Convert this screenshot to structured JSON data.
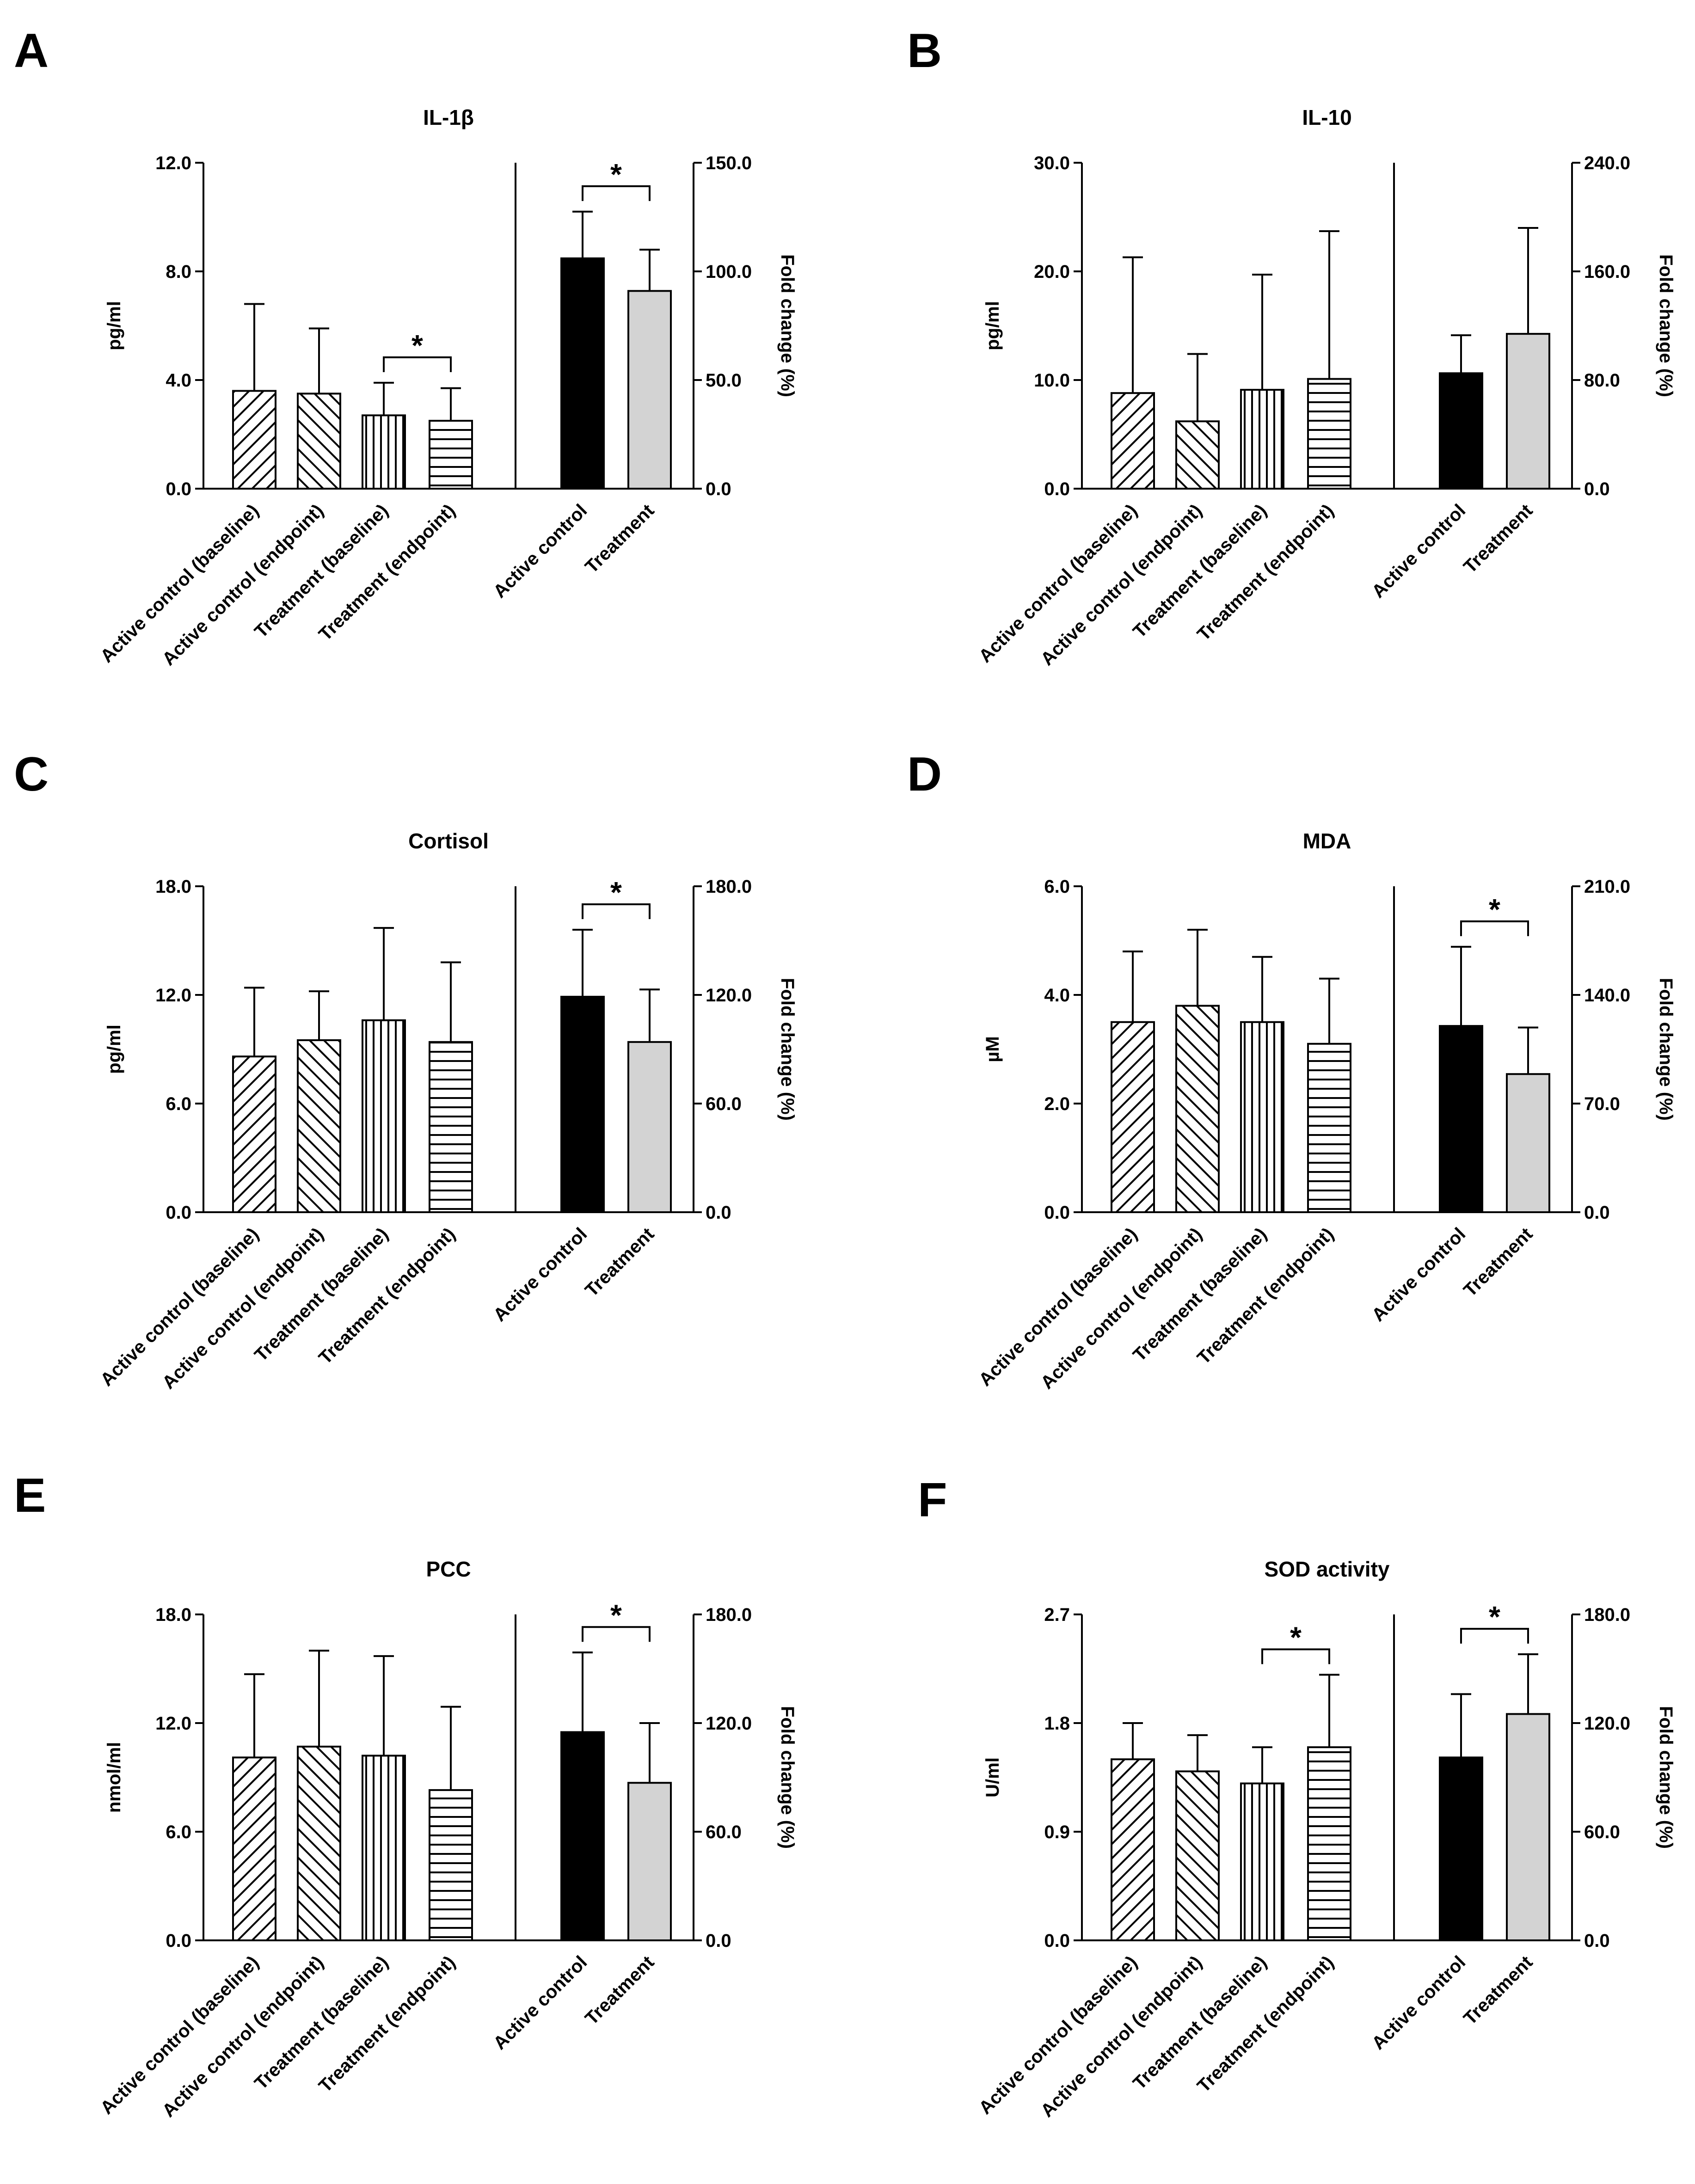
{
  "figure": {
    "panel_letters": [
      "A",
      "B",
      "C",
      "D",
      "E",
      "F"
    ]
  },
  "chart_data": [
    {
      "panel": "A",
      "type": "bar",
      "title": "IL-1β",
      "ylabel_left": "pg/ml",
      "ylabel_right": "Fold change (%)",
      "left_axis": {
        "ylim": [
          0,
          12
        ],
        "ticks": [
          "0.0",
          "4.0",
          "8.0",
          "12.0"
        ]
      },
      "right_axis": {
        "ylim": [
          0,
          150
        ],
        "ticks": [
          "0.0",
          "50.0",
          "100.0",
          "150.0"
        ]
      },
      "left_group": {
        "categories": [
          "Active control (baseline)",
          "Active control (endpoint)",
          "Treatment (baseline)",
          "Treatment (endpoint)"
        ],
        "values": [
          3.6,
          3.5,
          2.7,
          2.5
        ],
        "errors": [
          3.2,
          2.4,
          1.2,
          1.2
        ],
        "patterns": [
          "diag-back",
          "diag-fwd",
          "vertical",
          "horizontal"
        ],
        "significance": [
          {
            "from": 2,
            "to": 3,
            "label": "*"
          }
        ]
      },
      "right_group": {
        "categories": [
          "Active control",
          "Treatment"
        ],
        "values": [
          106,
          91
        ],
        "errors": [
          21.5,
          19
        ],
        "fills": [
          "#000000",
          "#d3d3d3"
        ],
        "significance": [
          {
            "from": 0,
            "to": 1,
            "label": "*"
          }
        ]
      }
    },
    {
      "panel": "B",
      "type": "bar",
      "title": "IL-10",
      "ylabel_left": "pg/ml",
      "ylabel_right": "Fold change (%)",
      "left_axis": {
        "ylim": [
          0,
          30
        ],
        "ticks": [
          "0.0",
          "10.0",
          "20.0",
          "30.0"
        ]
      },
      "right_axis": {
        "ylim": [
          0,
          240
        ],
        "ticks": [
          "0.0",
          "80.0",
          "160.0",
          "240.0"
        ]
      },
      "left_group": {
        "categories": [
          "Active control (baseline)",
          "Active control (endpoint)",
          "Treatment (baseline)",
          "Treatment (endpoint)"
        ],
        "values": [
          8.8,
          6.2,
          9.1,
          10.1
        ],
        "errors": [
          12.5,
          6.2,
          10.6,
          13.6
        ],
        "patterns": [
          "diag-back",
          "diag-fwd",
          "vertical",
          "horizontal"
        ],
        "significance": []
      },
      "right_group": {
        "categories": [
          "Active control",
          "Treatment"
        ],
        "values": [
          85,
          114
        ],
        "errors": [
          28,
          78
        ],
        "fills": [
          "#000000",
          "#d3d3d3"
        ],
        "significance": []
      }
    },
    {
      "panel": "C",
      "type": "bar",
      "title": "Cortisol",
      "ylabel_left": "pg/ml",
      "ylabel_right": "Fold change (%)",
      "left_axis": {
        "ylim": [
          0,
          18
        ],
        "ticks": [
          "0.0",
          "6.0",
          "12.0",
          "18.0"
        ]
      },
      "right_axis": {
        "ylim": [
          0,
          180
        ],
        "ticks": [
          "0.0",
          "60.0",
          "120.0",
          "180.0"
        ]
      },
      "left_group": {
        "categories": [
          "Active control (baseline)",
          "Active control (endpoint)",
          "Treatment (baseline)",
          "Treatment (endpoint)"
        ],
        "values": [
          8.6,
          9.5,
          10.6,
          9.4
        ],
        "errors": [
          3.8,
          2.7,
          5.1,
          4.4
        ],
        "patterns": [
          "diag-back",
          "diag-fwd",
          "vertical",
          "horizontal"
        ],
        "significance": []
      },
      "right_group": {
        "categories": [
          "Active control",
          "Treatment"
        ],
        "values": [
          119,
          94
        ],
        "errors": [
          37,
          29
        ],
        "fills": [
          "#000000",
          "#d3d3d3"
        ],
        "significance": [
          {
            "from": 0,
            "to": 1,
            "label": "*"
          }
        ]
      }
    },
    {
      "panel": "D",
      "type": "bar",
      "title": "MDA",
      "ylabel_left": "µM",
      "ylabel_right": "Fold change (%)",
      "left_axis": {
        "ylim": [
          0,
          6
        ],
        "ticks": [
          "0.0",
          "2.0",
          "4.0",
          "6.0"
        ]
      },
      "right_axis": {
        "ylim": [
          0,
          210
        ],
        "ticks": [
          "0.0",
          "70.0",
          "140.0",
          "210.0"
        ]
      },
      "left_group": {
        "categories": [
          "Active control (baseline)",
          "Active control (endpoint)",
          "Treatment (baseline)",
          "Treatment (endpoint)"
        ],
        "values": [
          3.5,
          3.8,
          3.5,
          3.1
        ],
        "errors": [
          1.3,
          1.4,
          1.2,
          1.2
        ],
        "patterns": [
          "diag-back",
          "diag-fwd",
          "vertical",
          "horizontal"
        ],
        "significance": []
      },
      "right_group": {
        "categories": [
          "Active control",
          "Treatment"
        ],
        "values": [
          120,
          89
        ],
        "errors": [
          51,
          30
        ],
        "fills": [
          "#000000",
          "#d3d3d3"
        ],
        "significance": [
          {
            "from": 0,
            "to": 1,
            "label": "*"
          }
        ]
      }
    },
    {
      "panel": "E",
      "type": "bar",
      "title": "PCC",
      "ylabel_left": "nmol/ml",
      "ylabel_right": "Fold change (%)",
      "left_axis": {
        "ylim": [
          0,
          18
        ],
        "ticks": [
          "0.0",
          "6.0",
          "12.0",
          "18.0"
        ]
      },
      "right_axis": {
        "ylim": [
          0,
          180
        ],
        "ticks": [
          "0.0",
          "60.0",
          "120.0",
          "180.0"
        ]
      },
      "left_group": {
        "categories": [
          "Active control (baseline)",
          "Active control (endpoint)",
          "Treatment (baseline)",
          "Treatment (endpoint)"
        ],
        "values": [
          10.1,
          10.7,
          10.2,
          8.3
        ],
        "errors": [
          4.6,
          5.3,
          5.5,
          4.6
        ],
        "patterns": [
          "diag-back",
          "diag-fwd",
          "vertical",
          "horizontal"
        ],
        "significance": []
      },
      "right_group": {
        "categories": [
          "Active control",
          "Treatment"
        ],
        "values": [
          115,
          87
        ],
        "errors": [
          44,
          33
        ],
        "fills": [
          "#000000",
          "#d3d3d3"
        ],
        "significance": [
          {
            "from": 0,
            "to": 1,
            "label": "*"
          }
        ]
      }
    },
    {
      "panel": "F",
      "type": "bar",
      "title": "SOD activity",
      "ylabel_left": "U/ml",
      "ylabel_right": "Fold change (%)",
      "left_axis": {
        "ylim": [
          0,
          2.7
        ],
        "ticks": [
          "0.0",
          "0.9",
          "1.8",
          "2.7"
        ]
      },
      "right_axis": {
        "ylim": [
          0,
          180
        ],
        "ticks": [
          "0.0",
          "60.0",
          "120.0",
          "180.0"
        ]
      },
      "left_group": {
        "categories": [
          "Active control (baseline)",
          "Active control (endpoint)",
          "Treatment (baseline)",
          "Treatment (endpoint)"
        ],
        "values": [
          1.5,
          1.4,
          1.3,
          1.6
        ],
        "errors": [
          0.3,
          0.3,
          0.3,
          0.6
        ],
        "patterns": [
          "diag-back",
          "diag-fwd",
          "vertical",
          "horizontal"
        ],
        "significance": [
          {
            "from": 2,
            "to": 3,
            "label": "*"
          }
        ]
      },
      "right_group": {
        "categories": [
          "Active control",
          "Treatment"
        ],
        "values": [
          101,
          125
        ],
        "errors": [
          35,
          33
        ],
        "fills": [
          "#000000",
          "#d3d3d3"
        ],
        "significance": [
          {
            "from": 0,
            "to": 1,
            "label": "*"
          }
        ]
      }
    }
  ]
}
